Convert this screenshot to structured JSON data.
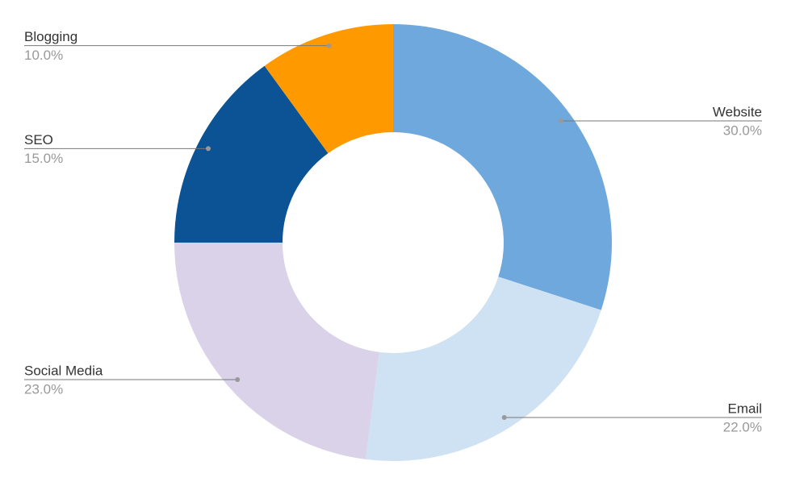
{
  "chart_data": {
    "type": "donut",
    "categories": [
      "Website",
      "Email",
      "Social Media",
      "SEO",
      "Blogging"
    ],
    "values": [
      30,
      22,
      23,
      15,
      10
    ],
    "value_labels": [
      "30.0%",
      "22.0%",
      "23.0%",
      "15.0%",
      "10.0%"
    ],
    "colors": [
      "#6fa8dc",
      "#cfe2f3",
      "#d9d2e9",
      "#0b5394",
      "#ff9900"
    ]
  }
}
